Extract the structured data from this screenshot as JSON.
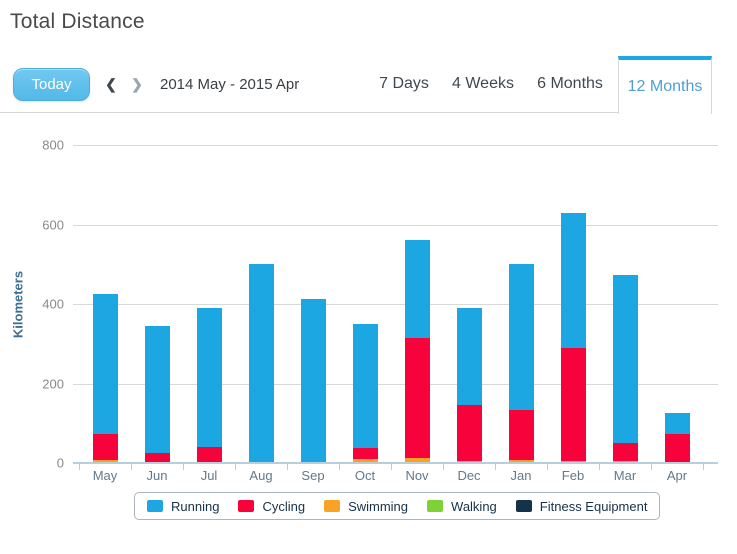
{
  "page": {
    "title": "Total Distance"
  },
  "toolbar": {
    "today_label": "Today",
    "prev_icon": "❮",
    "next_icon": "❯",
    "date_range": "2014 May - 2015 Apr",
    "tabs": [
      {
        "label": "7 Days",
        "active": false
      },
      {
        "label": "4 Weeks",
        "active": false
      },
      {
        "label": "6 Months",
        "active": false
      },
      {
        "label": "12 Months",
        "active": true
      }
    ],
    "active_tab_color": "#1ca8e3"
  },
  "chart_data": {
    "type": "bar",
    "stacked": true,
    "title": "Total Distance",
    "ylabel": "Kilometers",
    "xlabel": "",
    "ylim": [
      0,
      800
    ],
    "yticks": [
      0,
      200,
      400,
      600,
      800
    ],
    "grid": true,
    "legend_position": "bottom",
    "categories": [
      "May",
      "Jun",
      "Jul",
      "Aug",
      "Sep",
      "Oct",
      "Nov",
      "Dec",
      "Jan",
      "Feb",
      "Mar",
      "Apr"
    ],
    "series": [
      {
        "name": "Running",
        "color": "#1ca7e2",
        "values": [
          353,
          319,
          349,
          500,
          413,
          313,
          245,
          245,
          367,
          340,
          422,
          53
        ]
      },
      {
        "name": "Cycling",
        "color": "#f8023b",
        "values": [
          64,
          23,
          38,
          0,
          0,
          27,
          302,
          139,
          125,
          284,
          45,
          72
        ]
      },
      {
        "name": "Swimming",
        "color": "#f8a326",
        "values": [
          8,
          0,
          3,
          0,
          0,
          10,
          13,
          6,
          8,
          6,
          5,
          0
        ]
      },
      {
        "name": "Walking",
        "color": "#7fd235",
        "values": [
          0,
          3,
          0,
          0,
          0,
          0,
          0,
          0,
          0,
          0,
          0,
          0
        ]
      },
      {
        "name": "Fitness Equipment",
        "color": "#13324b",
        "values": [
          0,
          0,
          0,
          0,
          0,
          0,
          0,
          0,
          0,
          0,
          0,
          0
        ]
      }
    ],
    "stack_order_bottom_to_top": [
      "Fitness Equipment",
      "Walking",
      "Swimming",
      "Cycling",
      "Running"
    ],
    "totals": [
      425,
      345,
      390,
      500,
      413,
      350,
      560,
      390,
      500,
      630,
      472,
      125
    ]
  }
}
